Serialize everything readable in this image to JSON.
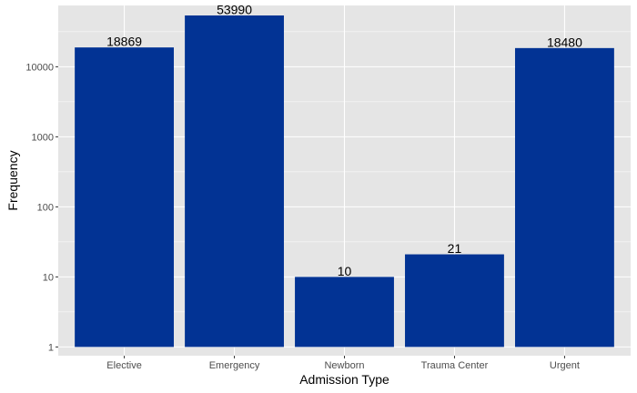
{
  "chart_data": {
    "type": "bar",
    "categories": [
      "Elective",
      "Emergency",
      "Newborn",
      "Trauma Center",
      "Urgent"
    ],
    "values": [
      18869,
      53990,
      10,
      21,
      18480
    ],
    "data_labels": [
      "18869",
      "53990",
      "10",
      "21",
      "18480"
    ],
    "title": "",
    "xlabel": "Admission Type",
    "ylabel": "Frequency",
    "y_scale": "log10",
    "yticks": [
      1,
      10,
      100,
      1000,
      10000
    ],
    "ytick_labels": [
      "1",
      "10",
      "100",
      "1000",
      "10000"
    ],
    "ylim": [
      0.75,
      75000
    ],
    "grid": true,
    "legend": "none"
  },
  "colors": {
    "bar": "#023394",
    "panel_background": "#e5e5e5",
    "grid": "#ffffff"
  }
}
